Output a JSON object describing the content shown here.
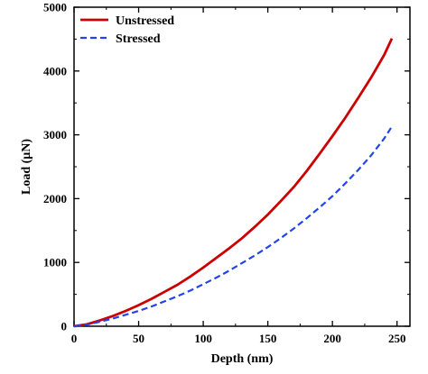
{
  "chart_data": {
    "type": "line",
    "title": "",
    "xlabel": "Depth (nm)",
    "ylabel": "Load (μN)",
    "xlim": [
      0,
      260
    ],
    "ylim": [
      0,
      5000
    ],
    "xticks": [
      0,
      50,
      100,
      150,
      200,
      250
    ],
    "yticks": [
      0,
      1000,
      2000,
      3000,
      4000,
      5000
    ],
    "xtick_labels": [
      "0",
      "50",
      "100",
      "150",
      "200",
      "250"
    ],
    "ytick_labels": [
      "0",
      "1000",
      "2000",
      "3000",
      "4000",
      "5000"
    ],
    "grid": false,
    "legend_position": "top-left",
    "series": [
      {
        "name": "Unstressed",
        "color": "#cc0000",
        "style": "solid",
        "x": [
          0,
          10,
          20,
          30,
          40,
          50,
          60,
          70,
          80,
          90,
          100,
          110,
          120,
          130,
          140,
          150,
          160,
          170,
          180,
          190,
          200,
          210,
          220,
          230,
          240,
          246
        ],
        "y": [
          0,
          30,
          90,
          160,
          240,
          330,
          430,
          540,
          650,
          780,
          920,
          1070,
          1220,
          1380,
          1560,
          1750,
          1960,
          2180,
          2430,
          2700,
          2980,
          3270,
          3580,
          3900,
          4250,
          4510
        ]
      },
      {
        "name": "Stressed",
        "color": "#2244ee",
        "style": "dashed",
        "x": [
          0,
          10,
          20,
          30,
          40,
          50,
          60,
          70,
          80,
          90,
          100,
          110,
          120,
          130,
          140,
          150,
          160,
          170,
          180,
          190,
          200,
          210,
          220,
          230,
          240,
          246
        ],
        "y": [
          0,
          25,
          70,
          120,
          180,
          240,
          310,
          390,
          470,
          560,
          660,
          760,
          870,
          990,
          1110,
          1240,
          1380,
          1530,
          1690,
          1860,
          2040,
          2240,
          2450,
          2680,
          2940,
          3130
        ]
      }
    ]
  }
}
